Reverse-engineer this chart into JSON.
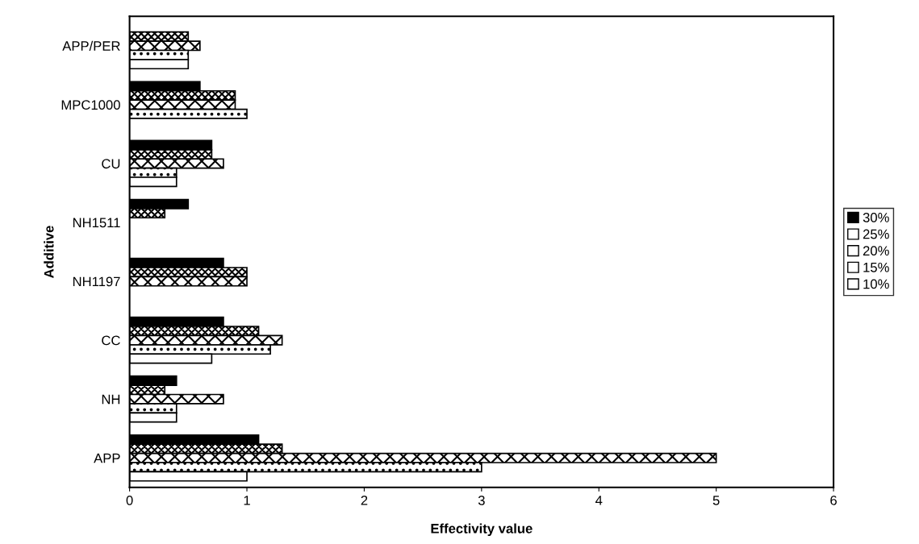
{
  "chart_data": {
    "type": "bar",
    "orientation": "horizontal",
    "xlabel": "Effectivity value",
    "ylabel": "Additive",
    "categories": [
      "APP/PER",
      "MPC1000",
      "CU",
      "NH1511",
      "NH1197",
      "CC",
      "NH",
      "APP"
    ],
    "series": [
      {
        "name": "30%",
        "color": "#000000",
        "values": [
          null,
          0.6,
          0.7,
          0.5,
          0.8,
          0.8,
          0.4,
          1.1
        ]
      },
      {
        "name": "25%",
        "color": "#ffffff",
        "values": [
          0.5,
          0.9,
          0.7,
          0.3,
          1.0,
          1.1,
          0.3,
          1.3
        ]
      },
      {
        "name": "20%",
        "color": "#ffffff",
        "values": [
          0.6,
          0.9,
          0.8,
          null,
          1.0,
          1.3,
          0.8,
          5.0
        ]
      },
      {
        "name": "15%",
        "color": "#ffffff",
        "values": [
          0.5,
          1.0,
          0.4,
          null,
          null,
          1.2,
          0.4,
          3.0
        ]
      },
      {
        "name": "10%",
        "color": "#ffffff",
        "values": [
          0.5,
          null,
          0.4,
          null,
          null,
          0.7,
          0.4,
          1.0
        ]
      }
    ],
    "xlim": [
      0,
      6
    ],
    "xticks": [
      0,
      1,
      2,
      3,
      4,
      5,
      6
    ],
    "grid": false,
    "legend": "right"
  }
}
